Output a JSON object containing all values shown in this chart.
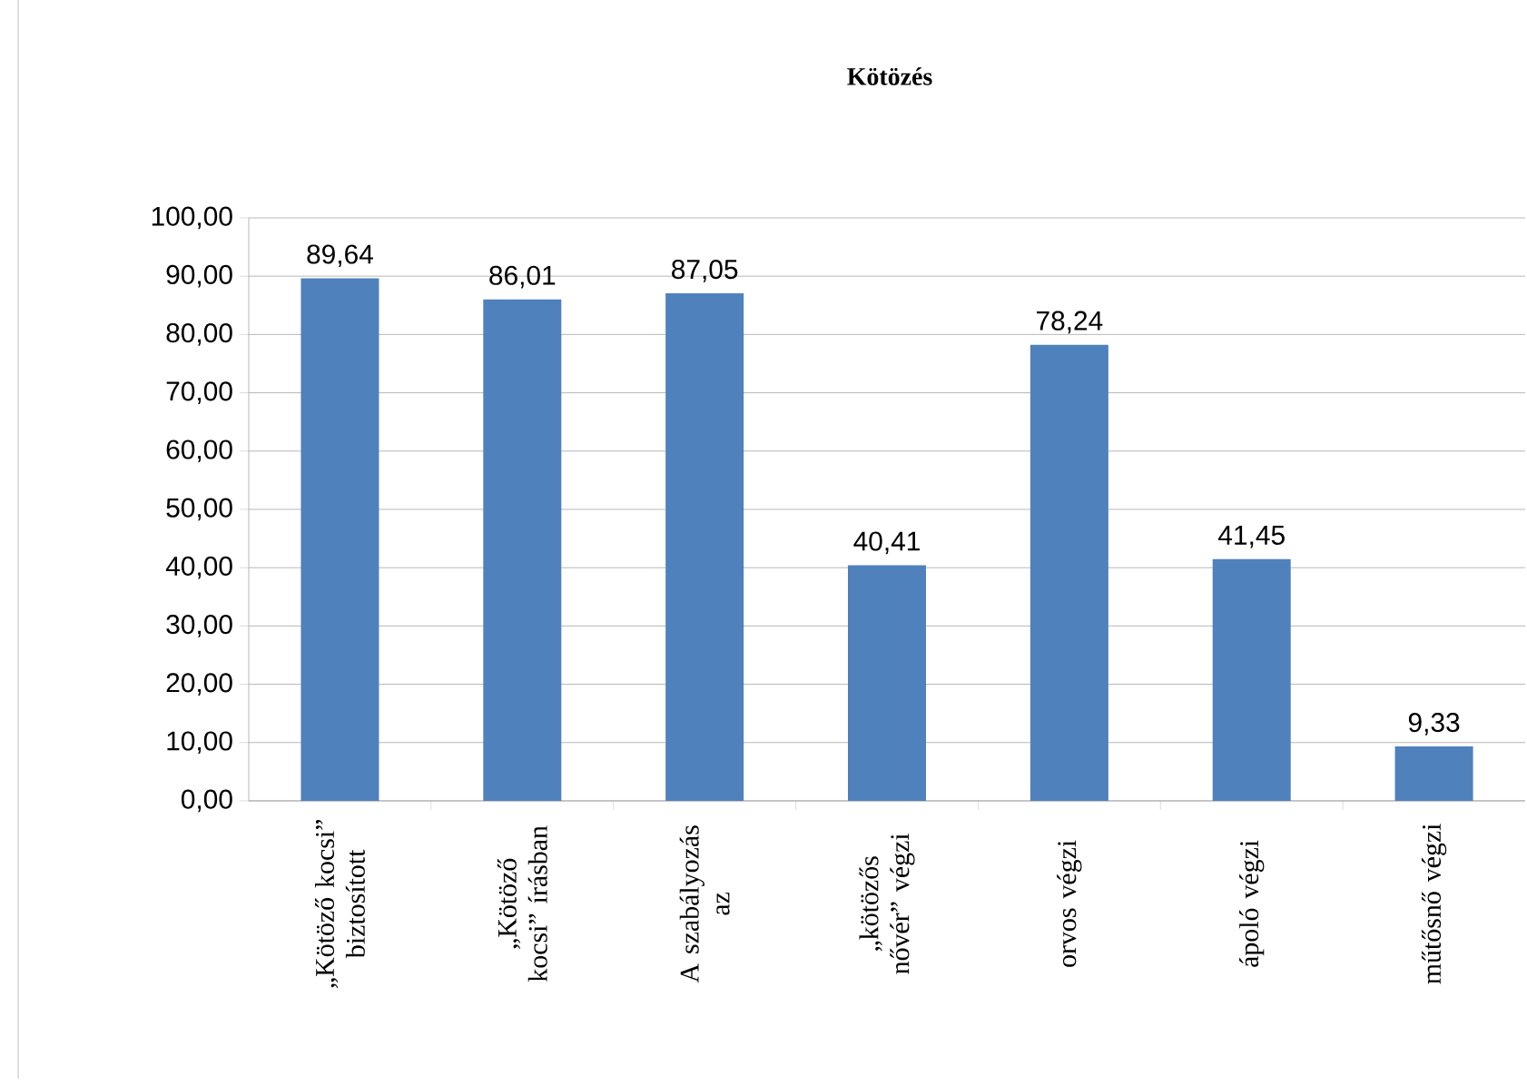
{
  "chart_data": {
    "type": "bar",
    "title": "Kötözés",
    "categories": [
      "„Kötöző kocsi” biztosított",
      "„Kötöző kocsi” írásban",
      "A szabályozás az",
      "„kötözős nővér” végzi",
      "orvos végzi",
      "ápoló végzi",
      "műtősnő végzi"
    ],
    "values": [
      89.64,
      86.01,
      87.05,
      40.41,
      78.24,
      41.45,
      9.33
    ],
    "value_labels": [
      "89,64",
      "86,01",
      "87,05",
      "40,41",
      "78,24",
      "41,45",
      "9,33"
    ],
    "color": "#4f81bd",
    "ylim": [
      0,
      100
    ],
    "yticks": [
      {
        "value": 0,
        "label": "0,00"
      },
      {
        "value": 10,
        "label": "10,00"
      },
      {
        "value": 20,
        "label": "20,00"
      },
      {
        "value": 30,
        "label": "30,00"
      },
      {
        "value": 40,
        "label": "40,00"
      },
      {
        "value": 50,
        "label": "50,00"
      },
      {
        "value": 60,
        "label": "60,00"
      },
      {
        "value": 70,
        "label": "70,00"
      },
      {
        "value": 80,
        "label": "80,00"
      },
      {
        "value": 90,
        "label": "90,00"
      },
      {
        "value": 100,
        "label": "100,00"
      }
    ],
    "grid": "y"
  }
}
